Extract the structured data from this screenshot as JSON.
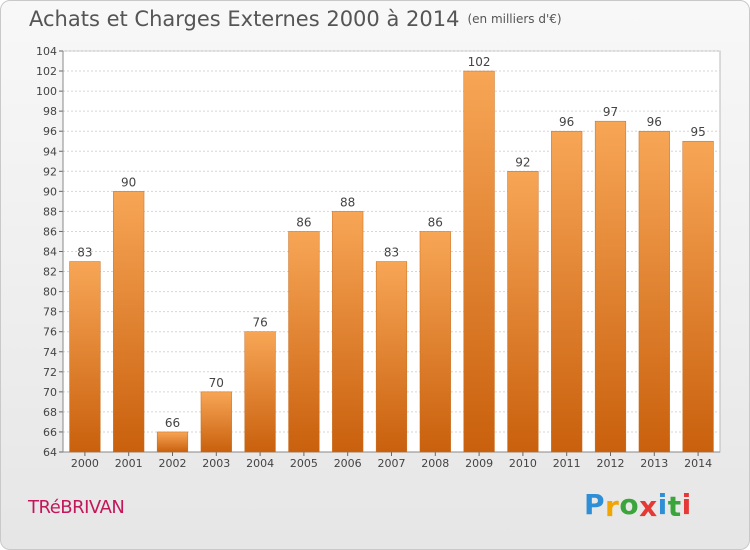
{
  "title": "Achats et Charges Externes 2000 à 2014",
  "unit": "(en milliers d'€)",
  "commune": "TRéBRIVAN",
  "logo": {
    "letters": [
      "P",
      "r",
      "o",
      "x",
      "i",
      "t",
      "i"
    ],
    "colors": [
      "#2e8fd6",
      "#f0a500",
      "#3aa53a",
      "#e53935",
      "#2e8fd6",
      "#3aa53a",
      "#e53935"
    ]
  },
  "colors": {
    "bar_light": "#f7a656",
    "bar_dark": "#c9600d",
    "axis_text": "#444444",
    "grid": "#d6d6d6"
  },
  "chart_data": {
    "type": "bar",
    "title": "Achats et Charges Externes 2000 à 2014",
    "subtitle": "(en milliers d'€)",
    "categories": [
      "2000",
      "2001",
      "2002",
      "2003",
      "2004",
      "2005",
      "2006",
      "2007",
      "2008",
      "2009",
      "2010",
      "2011",
      "2012",
      "2013",
      "2014"
    ],
    "values": [
      83,
      90,
      66,
      70,
      76,
      86,
      88,
      83,
      86,
      102,
      92,
      96,
      97,
      96,
      95
    ],
    "ylim": [
      64,
      104
    ],
    "yticks": [
      64,
      66,
      68,
      70,
      72,
      74,
      76,
      78,
      80,
      82,
      84,
      86,
      88,
      90,
      92,
      94,
      96,
      98,
      100,
      102,
      104
    ],
    "grid": true,
    "data_labels": true
  }
}
